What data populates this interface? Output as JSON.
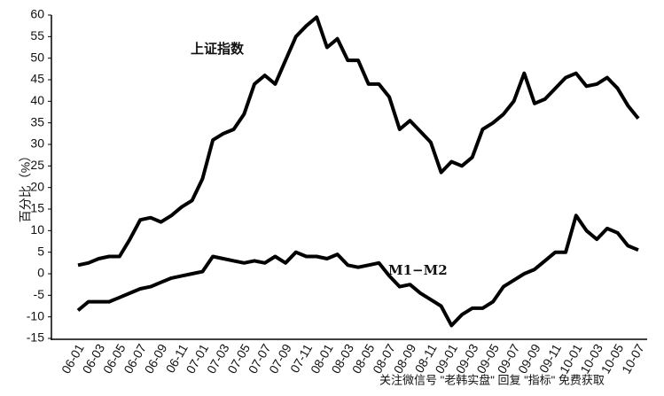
{
  "chart_data": {
    "type": "line",
    "y_label": "百分比（%）",
    "annotations": [
      "上证指数",
      "M1−M2"
    ],
    "watermark": "关注微信号 \"老韩实盘\" 回复 \"指标\" 免费获取",
    "categories": [
      "06-01",
      null,
      "06-03",
      null,
      "06-05",
      null,
      "06-07",
      null,
      "06-09",
      null,
      "06-11",
      null,
      "07-01",
      null,
      "07-03",
      null,
      "07-05",
      null,
      "07-07",
      null,
      "07-09",
      null,
      "07-11",
      null,
      "08-01",
      null,
      "08-03",
      null,
      "08-05",
      null,
      "08-07",
      null,
      "08-09",
      null,
      "08-11",
      null,
      "09-01",
      null,
      "09-03",
      null,
      "09-05",
      null,
      "09-07",
      null,
      "09-09",
      null,
      "09-11",
      null,
      "10-01",
      null,
      "10-03",
      null,
      "10-05",
      null,
      "10-07"
    ],
    "series": [
      {
        "name": "上证指数",
        "color": "#000000",
        "values": [
          2,
          2.5,
          3.5,
          4,
          4,
          8,
          12.5,
          13,
          12,
          13.5,
          15.5,
          17,
          22,
          31,
          32.5,
          33.5,
          37,
          44,
          46,
          44,
          49.5,
          55,
          57.5,
          59.5,
          52.5,
          54.5,
          49.5,
          49.5,
          44,
          44,
          41,
          33.5,
          35.5,
          33,
          30.5,
          23.5,
          26,
          25,
          27,
          33.5,
          35,
          37,
          40,
          46.5,
          39.5,
          40.5,
          43,
          45.5,
          46.5,
          43.5,
          44,
          45.5,
          43,
          39,
          36
        ]
      },
      {
        "name": "M1−M2",
        "color": "#000000",
        "values": [
          -8.5,
          -6.5,
          -6.5,
          -6.5,
          -5.5,
          -4.5,
          -3.5,
          -3,
          -2,
          -1,
          -0.5,
          0,
          0.5,
          4,
          3.5,
          3,
          2.5,
          3,
          2.5,
          4,
          2.5,
          5,
          4,
          4,
          3.5,
          4.5,
          2,
          1.5,
          2,
          2.5,
          -0.5,
          -3,
          -2.5,
          -4.5,
          -6,
          -7.5,
          -12,
          -9.5,
          -8,
          -8,
          -6.5,
          -3,
          -1.5,
          0,
          1,
          3,
          5,
          5,
          13.5,
          10,
          8,
          10.5,
          9.5,
          6.5,
          5.5
        ]
      }
    ],
    "ylim": [
      -15,
      60
    ],
    "yticks": [
      -15,
      -10,
      -5,
      0,
      5,
      10,
      15,
      20,
      25,
      30,
      35,
      40,
      45,
      50,
      55,
      60
    ],
    "grid": false
  }
}
